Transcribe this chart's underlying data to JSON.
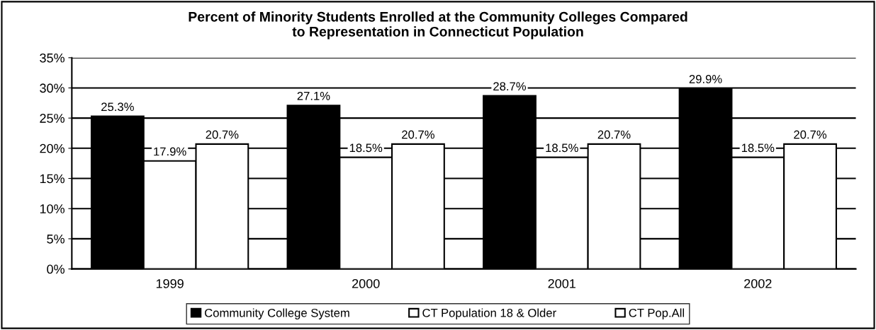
{
  "chart_data": {
    "type": "bar",
    "title": "Percent of Minority Students Enrolled at the Community Colleges Compared\nto Representation in Connecticut Population",
    "categories": [
      "1999",
      "2000",
      "2001",
      "2002"
    ],
    "series": [
      {
        "name": "Community College System",
        "color": "#000000",
        "values": [
          25.3,
          27.1,
          28.7,
          29.9
        ]
      },
      {
        "name": "CT Population 18 & Older",
        "color": "#ffffff",
        "values": [
          17.9,
          18.5,
          18.5,
          18.5
        ]
      },
      {
        "name": "CT Pop.All",
        "color": "#ffffff",
        "values": [
          20.7,
          20.7,
          20.7,
          20.7
        ]
      }
    ],
    "ylim": [
      0,
      35
    ],
    "yticks": [
      {
        "value": 0,
        "label": "0%"
      },
      {
        "value": 5,
        "label": "5%"
      },
      {
        "value": 10,
        "label": "10%"
      },
      {
        "value": 15,
        "label": "15%"
      },
      {
        "value": 20,
        "label": "20%"
      },
      {
        "value": 25,
        "label": "25%"
      },
      {
        "value": 30,
        "label": "30%"
      },
      {
        "value": 35,
        "label": "35%"
      }
    ],
    "value_labels": [
      [
        "25.3%",
        "27.1%",
        "28.7%",
        "29.9%"
      ],
      [
        "17.9%",
        "18.5%",
        "18.5%",
        "18.5%"
      ],
      [
        "20.7%",
        "20.7%",
        "20.7%",
        "20.7%"
      ]
    ],
    "grid": "y",
    "legend": "bottom"
  }
}
